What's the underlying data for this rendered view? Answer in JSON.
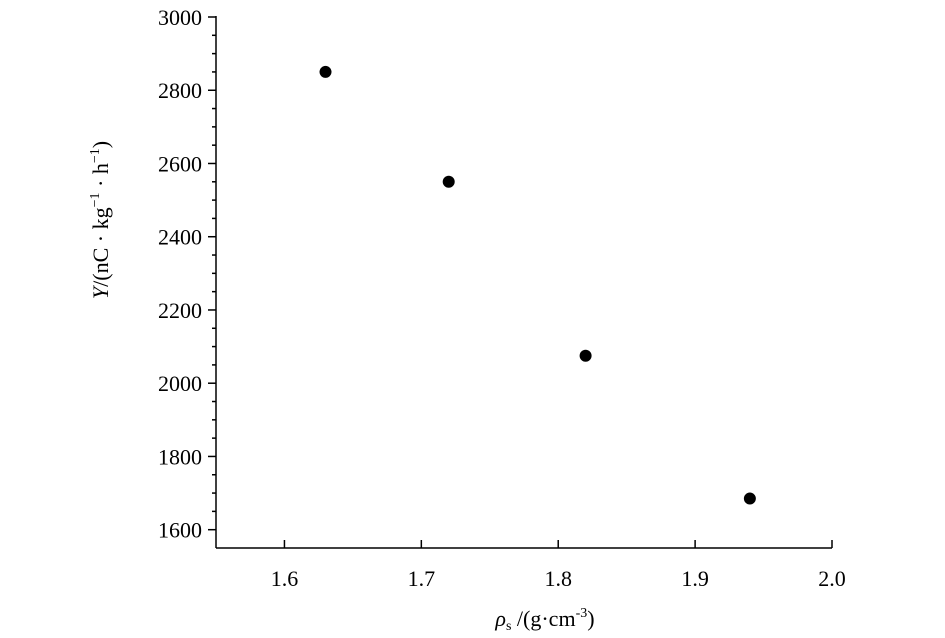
{
  "chart_data": {
    "type": "scatter",
    "x_label": [
      "ρ",
      "s",
      " /(g·cm",
      "-3",
      ")"
    ],
    "y_label": [
      "Y",
      "/(nC · kg",
      "−1",
      " · h",
      "−1",
      ")"
    ],
    "x": [
      1.63,
      1.72,
      1.82,
      1.94
    ],
    "values": [
      2850,
      2550,
      2075,
      1685
    ],
    "color": "#000000",
    "xlim": [
      1.55,
      2.0
    ],
    "xticks": [
      {
        "value": 1.6,
        "label": "1.6"
      },
      {
        "value": 1.7,
        "label": "1.7"
      },
      {
        "value": 1.8,
        "label": "1.8"
      },
      {
        "value": 1.9,
        "label": "1.9"
      },
      {
        "value": 2.0,
        "label": "2.0"
      }
    ],
    "ylim": [
      1550,
      3000
    ],
    "yticks": [
      1600,
      1800,
      2000,
      2200,
      2400,
      2600,
      2800,
      3000
    ],
    "yminorticks": [
      1650,
      1700,
      1750,
      1850,
      1900,
      1950,
      2050,
      2100,
      2150,
      2250,
      2300,
      2350,
      2450,
      2500,
      2550,
      2650,
      2700,
      2750,
      2850,
      2900,
      2950
    ],
    "grid": false
  }
}
